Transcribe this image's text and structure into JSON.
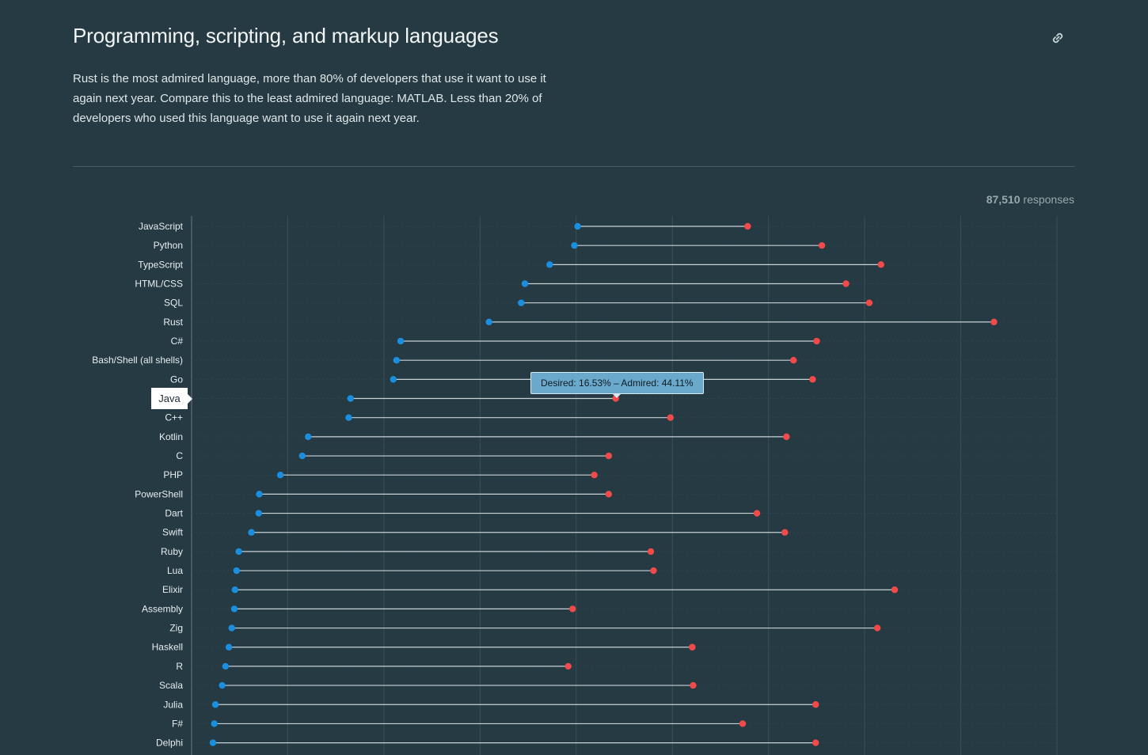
{
  "header": {
    "title": "Programming, scripting, and markup languages",
    "description": "Rust is the most admired language, more than 80% of developers that use it want to use it again next year. Compare this to the least admired language: MATLAB. Less than 20% of developers who used this language want to use it again next year.",
    "link_icon": "link-icon"
  },
  "responses": {
    "count": "87,510",
    "label": "responses"
  },
  "tooltip": {
    "text": "Desired: 16.53% – Admired: 44.11%"
  },
  "highlight": {
    "label": "Java"
  },
  "colors": {
    "desired": "#1a8fe0",
    "admired": "#f04a4a",
    "background": "#253a42"
  },
  "chart_data": {
    "type": "dumbbell",
    "xlim": [
      0,
      90
    ],
    "series": [
      {
        "name": "Desired",
        "values": [
          40.15,
          39.81,
          37.24,
          34.67,
          34.28,
          30.93,
          21.74,
          21.31,
          20.98,
          16.53,
          16.34,
          12.12,
          11.51,
          9.23,
          7.04,
          6.98,
          6.22,
          4.91,
          4.68,
          4.51,
          4.44,
          4.18,
          3.88,
          3.53,
          3.18,
          2.48,
          2.36,
          2.22
        ]
      },
      {
        "name": "Admired",
        "values": [
          57.83,
          65.55,
          71.7,
          68.06,
          70.48,
          83.45,
          65.01,
          62.6,
          64.59,
          44.11,
          49.8,
          61.87,
          43.38,
          41.88,
          43.38,
          58.8,
          61.7,
          47.76,
          48.04,
          73.12,
          39.62,
          71.32,
          52.07,
          39.17,
          52.16,
          64.91,
          57.31,
          64.91
        ]
      }
    ],
    "categories": [
      "JavaScript",
      "Python",
      "TypeScript",
      "HTML/CSS",
      "SQL",
      "Rust",
      "C#",
      "Bash/Shell (all shells)",
      "Go",
      "Java",
      "C++",
      "Kotlin",
      "C",
      "PHP",
      "PowerShell",
      "Dart",
      "Swift",
      "Ruby",
      "Lua",
      "Elixir",
      "Assembly",
      "Zig",
      "Haskell",
      "R",
      "Scala",
      "Julia",
      "F#",
      "Delphi"
    ],
    "grid": true,
    "highlighted_category": "Java"
  }
}
